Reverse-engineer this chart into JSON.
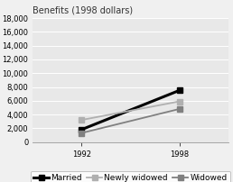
{
  "title": "Benefits (1998 dollars)",
  "years": [
    1992,
    1998
  ],
  "series": {
    "Married": [
      1800,
      7500
    ],
    "Newly widowed": [
      3200,
      5900
    ],
    "Widowed": [
      1300,
      4800
    ]
  },
  "colors": {
    "Married": "#000000",
    "Newly widowed": "#b0b0b0",
    "Widowed": "#808080"
  },
  "line_widths": {
    "Married": 2.2,
    "Newly widowed": 1.3,
    "Widowed": 1.3
  },
  "marker_sizes": {
    "Married": 5,
    "Newly widowed": 5,
    "Widowed": 5
  },
  "ylim": [
    0,
    18000
  ],
  "yticks": [
    0,
    2000,
    4000,
    6000,
    8000,
    10000,
    12000,
    14000,
    16000,
    18000
  ],
  "xlim": [
    1989,
    2001
  ],
  "xticks": [
    1992,
    1998
  ],
  "plot_bg": "#e8e8e8",
  "outer_bg": "#f0f0f0",
  "legend_bg": "#ffffff",
  "title_fontsize": 7.0,
  "tick_fontsize": 6.0,
  "legend_fontsize": 6.5
}
